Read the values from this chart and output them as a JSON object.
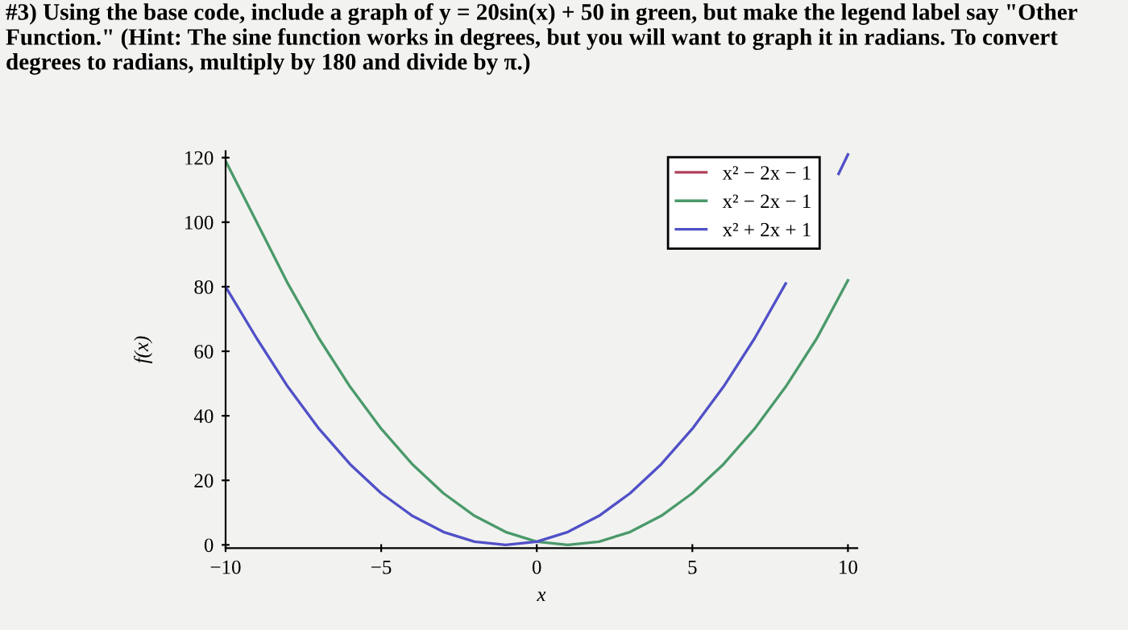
{
  "chart_data": {
    "type": "line",
    "title": "#3) Using the base code, include a graph of y = 20sin(x) + 50 in green, but make the legend label say \"Other Function.\" (Hint: The sine function works in degrees, but you will want to graph it in radians. To convert degrees to radians, multiply by 180 and divide by π.)",
    "xlabel": "x",
    "ylabel": "f(x)",
    "x": [
      -10,
      -9,
      -8,
      -7,
      -6,
      -5,
      -4,
      -3,
      -2,
      -1,
      0,
      1,
      2,
      3,
      4,
      5,
      6,
      7,
      8,
      9,
      10
    ],
    "series": [
      {
        "name": "x² − 2x − 1",
        "color": "#b0405a",
        "values": [
          null,
          null,
          null,
          null,
          null,
          null,
          null,
          null,
          null,
          null,
          null,
          null,
          null,
          null,
          null,
          null,
          null,
          null,
          null,
          null,
          null
        ]
      },
      {
        "name": "x² − 2x − 1",
        "color": "#4a9a6a",
        "values": [
          119,
          100,
          81,
          64,
          49,
          36,
          25,
          16,
          9,
          4,
          1,
          0,
          1,
          4,
          9,
          16,
          25,
          36,
          49,
          64,
          82
        ]
      },
      {
        "name": "x² + 2x + 1",
        "color": "#5050c8",
        "x": [
          -10,
          -9,
          -8,
          -7,
          -6,
          -5,
          -4,
          -3,
          -2,
          -1,
          0,
          1,
          2,
          3,
          4,
          5,
          6,
          7,
          8,
          9,
          9.7,
          10
        ],
        "values": [
          80,
          64,
          49,
          36,
          25,
          16,
          9,
          4,
          1,
          0,
          1,
          4,
          9,
          16,
          25,
          36,
          49,
          64,
          81,
          null,
          115,
          121
        ]
      }
    ],
    "xlim": [
      -10,
      10.3
    ],
    "ylim": [
      -1,
      122
    ],
    "xticks": [
      {
        "value": -10,
        "label": "−10"
      },
      {
        "value": -5,
        "label": "−5"
      },
      0,
      5,
      10
    ],
    "yticks": [
      0,
      20,
      40,
      60,
      80,
      100,
      120
    ],
    "legend": "top right"
  }
}
